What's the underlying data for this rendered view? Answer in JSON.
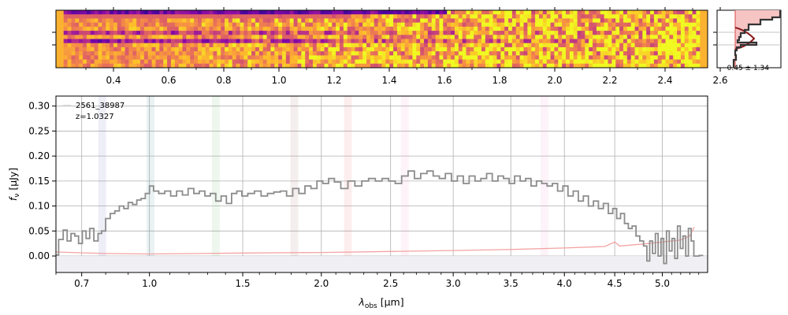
{
  "colors": {
    "spectrum": "#8c8c8c",
    "error": "#f4a3a3",
    "grid": "#b0b0b0",
    "profile_line": "#333333",
    "profile_fill": "#f7c4c4",
    "profile_model": "#8b1a1a",
    "profile_center": "#e06060",
    "legend_box": "#cfcfcf",
    "zero_fill": "#f0f0f4"
  },
  "chart_data": [
    {
      "type": "heatmap",
      "name": "2D spectrum",
      "colormap": "plasma",
      "x_axis": {
        "ticks": [
          "0.4",
          "0.6",
          "0.8",
          "1.0",
          "1.2",
          "1.4",
          "1.6",
          "1.8",
          "2.0",
          "2.2",
          "2.4",
          "2.6"
        ],
        "major_values": [
          0.4,
          0.6,
          0.8,
          1.0,
          1.2,
          1.4,
          1.6,
          1.8,
          2.0,
          2.2,
          2.4,
          2.6
        ],
        "minor_values": [
          0.3,
          0.5,
          0.7,
          0.9,
          1.1,
          1.3,
          1.5,
          1.7,
          1.9,
          2.1,
          2.3,
          2.5
        ]
      },
      "trace_rows": [
        5,
        7
      ]
    },
    {
      "type": "line",
      "name": "spatial profile",
      "annotation": "0.45 ± 1.34"
    },
    {
      "type": "line",
      "name": "1D spectrum",
      "xlabel_main": "λ",
      "xlabel_sub": "obs",
      "xlabel_unit": " [μm]",
      "ylabel_main": "f",
      "ylabel_sub": "ν",
      "ylabel_unit": " [μJy]",
      "xlim": [
        0.6,
        5.5
      ],
      "ylim": [
        -0.033,
        0.32
      ],
      "x_scale": "sqrt",
      "grid": true,
      "xticks": [
        "0.7",
        "1.0",
        "1.5",
        "2.0",
        "2.5",
        "3.0",
        "3.5",
        "4.0",
        "4.5",
        "5.0"
      ],
      "xtick_values": [
        0.7,
        1.0,
        1.5,
        2.0,
        2.5,
        3.0,
        3.5,
        4.0,
        4.5,
        5.0
      ],
      "yticks": [
        "0.00",
        "0.05",
        "0.10",
        "0.15",
        "0.20",
        "0.25",
        "0.30"
      ],
      "ytick_values": [
        0.0,
        0.05,
        0.1,
        0.15,
        0.2,
        0.25,
        0.3
      ],
      "legend": {
        "placement": "top-left",
        "lines": [
          "2561_38987",
          "z=1.0327"
        ]
      },
      "line_markers": [
        {
          "x": 0.785,
          "color": "#8a8ac8"
        },
        {
          "x": 1.005,
          "color": "#6aa6b4"
        },
        {
          "x": 1.345,
          "color": "#7fc48a"
        },
        {
          "x": 1.82,
          "color": "#b88a8a"
        },
        {
          "x": 2.185,
          "color": "#f08a8a"
        },
        {
          "x": 2.61,
          "color": "#f0a8d0"
        },
        {
          "x": 3.81,
          "color": "#f0a8d0"
        }
      ],
      "flux_points": [
        [
          0.6,
          0.002
        ],
        [
          0.62,
          0.033
        ],
        [
          0.635,
          0.052
        ],
        [
          0.65,
          0.03
        ],
        [
          0.665,
          0.045
        ],
        [
          0.68,
          0.04
        ],
        [
          0.695,
          0.025
        ],
        [
          0.71,
          0.05
        ],
        [
          0.725,
          0.035
        ],
        [
          0.74,
          0.055
        ],
        [
          0.76,
          0.03
        ],
        [
          0.775,
          0.045
        ],
        [
          0.79,
          0.05
        ],
        [
          0.81,
          0.075
        ],
        [
          0.83,
          0.085
        ],
        [
          0.85,
          0.09
        ],
        [
          0.87,
          0.1
        ],
        [
          0.89,
          0.095
        ],
        [
          0.91,
          0.107
        ],
        [
          0.93,
          0.103
        ],
        [
          0.95,
          0.112
        ],
        [
          0.97,
          0.115
        ],
        [
          0.99,
          0.125
        ],
        [
          1.01,
          0.14
        ],
        [
          1.03,
          0.13
        ],
        [
          1.06,
          0.125
        ],
        [
          1.09,
          0.13
        ],
        [
          1.12,
          0.12
        ],
        [
          1.15,
          0.13
        ],
        [
          1.18,
          0.122
        ],
        [
          1.21,
          0.135
        ],
        [
          1.24,
          0.125
        ],
        [
          1.27,
          0.13
        ],
        [
          1.3,
          0.12
        ],
        [
          1.33,
          0.125
        ],
        [
          1.36,
          0.11
        ],
        [
          1.39,
          0.12
        ],
        [
          1.42,
          0.105
        ],
        [
          1.45,
          0.125
        ],
        [
          1.48,
          0.13
        ],
        [
          1.51,
          0.12
        ],
        [
          1.55,
          0.125
        ],
        [
          1.59,
          0.13
        ],
        [
          1.63,
          0.12
        ],
        [
          1.67,
          0.125
        ],
        [
          1.71,
          0.128
        ],
        [
          1.75,
          0.13
        ],
        [
          1.79,
          0.12
        ],
        [
          1.83,
          0.135
        ],
        [
          1.87,
          0.125
        ],
        [
          1.91,
          0.14
        ],
        [
          1.95,
          0.135
        ],
        [
          1.99,
          0.15
        ],
        [
          2.03,
          0.145
        ],
        [
          2.07,
          0.155
        ],
        [
          2.11,
          0.148
        ],
        [
          2.16,
          0.135
        ],
        [
          2.21,
          0.15
        ],
        [
          2.26,
          0.14
        ],
        [
          2.31,
          0.15
        ],
        [
          2.36,
          0.155
        ],
        [
          2.41,
          0.15
        ],
        [
          2.46,
          0.155
        ],
        [
          2.51,
          0.15
        ],
        [
          2.56,
          0.145
        ],
        [
          2.61,
          0.16
        ],
        [
          2.66,
          0.17
        ],
        [
          2.71,
          0.155
        ],
        [
          2.76,
          0.165
        ],
        [
          2.81,
          0.17
        ],
        [
          2.86,
          0.16
        ],
        [
          2.91,
          0.155
        ],
        [
          2.96,
          0.165
        ],
        [
          3.01,
          0.15
        ],
        [
          3.06,
          0.16
        ],
        [
          3.11,
          0.145
        ],
        [
          3.16,
          0.16
        ],
        [
          3.21,
          0.15
        ],
        [
          3.26,
          0.155
        ],
        [
          3.31,
          0.165
        ],
        [
          3.36,
          0.15
        ],
        [
          3.41,
          0.16
        ],
        [
          3.46,
          0.155
        ],
        [
          3.51,
          0.145
        ],
        [
          3.56,
          0.16
        ],
        [
          3.61,
          0.15
        ],
        [
          3.66,
          0.155
        ],
        [
          3.71,
          0.14
        ],
        [
          3.76,
          0.15
        ],
        [
          3.81,
          0.145
        ],
        [
          3.86,
          0.14
        ],
        [
          3.91,
          0.145
        ],
        [
          3.96,
          0.13
        ],
        [
          4.01,
          0.14
        ],
        [
          4.06,
          0.12
        ],
        [
          4.11,
          0.13
        ],
        [
          4.16,
          0.11
        ],
        [
          4.21,
          0.12
        ],
        [
          4.26,
          0.1
        ],
        [
          4.31,
          0.11
        ],
        [
          4.36,
          0.095
        ],
        [
          4.41,
          0.105
        ],
        [
          4.46,
          0.085
        ],
        [
          4.5,
          0.095
        ],
        [
          4.54,
          0.075
        ],
        [
          4.58,
          0.085
        ],
        [
          4.62,
          0.065
        ],
        [
          4.66,
          0.055
        ],
        [
          4.7,
          0.06
        ],
        [
          4.74,
          0.04
        ],
        [
          4.78,
          0.03
        ],
        [
          4.82,
          0.02
        ],
        [
          4.85,
          -0.01
        ],
        [
          4.88,
          0.03
        ],
        [
          4.91,
          0.005
        ],
        [
          4.94,
          0.045
        ],
        [
          4.97,
          0.0
        ],
        [
          5.0,
          0.035
        ],
        [
          5.03,
          -0.015
        ],
        [
          5.06,
          0.05
        ],
        [
          5.09,
          0.01
        ],
        [
          5.12,
          0.035
        ],
        [
          5.15,
          -0.005
        ],
        [
          5.18,
          0.06
        ],
        [
          5.21,
          0.015
        ],
        [
          5.24,
          0.04
        ],
        [
          5.27,
          0.0
        ],
        [
          5.3,
          0.055
        ],
        [
          5.33,
          0.03
        ],
        [
          5.36,
          0.0
        ],
        [
          5.45,
          0.001
        ]
      ],
      "error_points": [
        [
          0.6,
          0.008
        ],
        [
          0.8,
          0.005
        ],
        [
          1.0,
          0.004
        ],
        [
          1.5,
          0.006
        ],
        [
          2.0,
          0.007
        ],
        [
          2.5,
          0.009
        ],
        [
          3.0,
          0.011
        ],
        [
          3.5,
          0.013
        ],
        [
          4.0,
          0.016
        ],
        [
          4.4,
          0.019
        ],
        [
          4.5,
          0.028
        ],
        [
          4.55,
          0.02
        ],
        [
          4.8,
          0.024
        ],
        [
          5.0,
          0.028
        ],
        [
          5.2,
          0.032
        ],
        [
          5.3,
          0.04
        ],
        [
          5.35,
          0.058
        ]
      ]
    }
  ]
}
